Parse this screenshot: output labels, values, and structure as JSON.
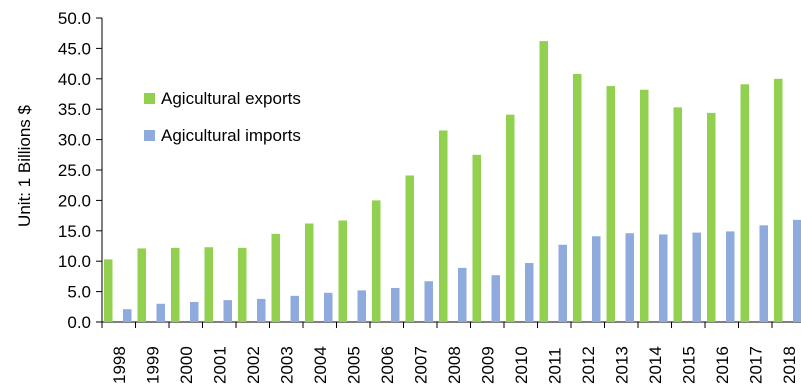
{
  "chart_data": {
    "type": "bar",
    "title": "",
    "xlabel": "",
    "ylabel": "Unit: 1 Billions $",
    "ylim": [
      0,
      50
    ],
    "ytick_step": 5,
    "ytick_labels": [
      "0.0",
      "5.0",
      "10.0",
      "15.0",
      "20.0",
      "25.0",
      "30.0",
      "35.0",
      "40.0",
      "45.0",
      "50.0"
    ],
    "grid": false,
    "legend_position": "left",
    "categories": [
      "1998",
      "1999",
      "2000",
      "2001",
      "2002",
      "2003",
      "2004",
      "2005",
      "2006",
      "2007",
      "2008",
      "2009",
      "2010",
      "2011",
      "2012",
      "2013",
      "2014",
      "2015",
      "2016",
      "2017",
      "2018"
    ],
    "series": [
      {
        "name": "Agicultural exports",
        "color": "#92d050",
        "values": [
          10.3,
          12.1,
          12.2,
          12.3,
          12.2,
          14.5,
          16.2,
          16.7,
          20.0,
          24.1,
          31.5,
          27.5,
          34.1,
          46.2,
          40.8,
          38.8,
          38.2,
          35.3,
          34.4,
          39.1,
          40.0
        ]
      },
      {
        "name": "Agicultural imports",
        "color": "#8faadc",
        "values": [
          2.1,
          3.0,
          3.3,
          3.6,
          3.8,
          4.3,
          4.8,
          5.2,
          5.6,
          6.7,
          8.9,
          7.7,
          9.7,
          12.7,
          14.1,
          14.6,
          14.4,
          14.7,
          14.9,
          15.9,
          16.8
        ]
      }
    ]
  }
}
